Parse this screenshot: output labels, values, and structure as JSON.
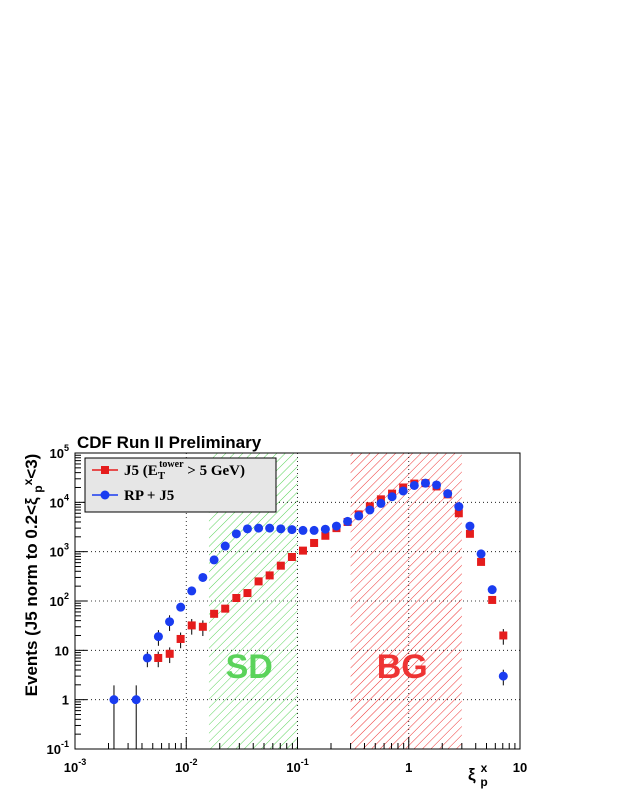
{
  "chart_data": {
    "type": "scatter",
    "title": "CDF Run II Preliminary",
    "ylabel": "Events (J5 norm to 0.2<ξpˣ<3)",
    "xlabel": "ξpˣ",
    "xscale": "log",
    "yscale": "log",
    "xlim": [
      0.001,
      10
    ],
    "ylim": [
      0.1,
      100000
    ],
    "x_ticks": [
      {
        "base": "10",
        "exp": "-3",
        "value": 0.001
      },
      {
        "base": "10",
        "exp": "-2",
        "value": 0.01
      },
      {
        "base": "10",
        "exp": "-1",
        "value": 0.1
      },
      {
        "base": "1",
        "exp": "",
        "value": 1
      },
      {
        "base": "10",
        "exp": "",
        "value": 10
      }
    ],
    "y_ticks": [
      {
        "base": "10",
        "exp": "-1",
        "value": 0.1
      },
      {
        "base": "1",
        "exp": "",
        "value": 1
      },
      {
        "base": "10",
        "exp": "",
        "value": 10
      },
      {
        "base": "10",
        "exp": "2",
        "value": 100
      },
      {
        "base": "10",
        "exp": "3",
        "value": 1000
      },
      {
        "base": "10",
        "exp": "4",
        "value": 10000
      },
      {
        "base": "10",
        "exp": "5",
        "value": 100000
      }
    ],
    "grid": true,
    "regions": [
      {
        "label": "SD",
        "x_range": [
          0.016,
          0.1
        ],
        "color": "#5ad35a"
      },
      {
        "label": "BG",
        "x_range": [
          0.3,
          3.0
        ],
        "color": "#ee3333"
      }
    ],
    "legend_placement": "top-left",
    "series": [
      {
        "name": "J5 (E_T^tower > 5 GeV)",
        "legend": {
          "prefix": "J5 (E",
          "sub": "T",
          "sup": "tower",
          "suffix": " > 5 GeV)"
        },
        "marker": "square",
        "color": "#e51c1c",
        "points": [
          [
            0.0056,
            7
          ],
          [
            0.0071,
            8.5
          ],
          [
            0.0089,
            17
          ],
          [
            0.0112,
            32
          ],
          [
            0.0141,
            30
          ],
          [
            0.0178,
            55
          ],
          [
            0.0224,
            70
          ],
          [
            0.0282,
            115
          ],
          [
            0.0355,
            145
          ],
          [
            0.0447,
            250
          ],
          [
            0.0562,
            330
          ],
          [
            0.0708,
            520
          ],
          [
            0.0891,
            780
          ],
          [
            0.112,
            1050
          ],
          [
            0.141,
            1500
          ],
          [
            0.178,
            2100
          ],
          [
            0.224,
            3000
          ],
          [
            0.282,
            4000
          ],
          [
            0.355,
            5700
          ],
          [
            0.447,
            8300
          ],
          [
            0.562,
            11500
          ],
          [
            0.708,
            15000
          ],
          [
            0.891,
            20000
          ],
          [
            1.122,
            24000
          ],
          [
            1.413,
            24500
          ],
          [
            1.778,
            21000
          ],
          [
            2.239,
            14500
          ],
          [
            2.818,
            6000
          ],
          [
            3.548,
            2300
          ],
          [
            4.467,
            620
          ],
          [
            5.623,
            105
          ],
          [
            7.079,
            20
          ]
        ]
      },
      {
        "name": "RP + J5",
        "legend": {
          "prefix": "RP + J5",
          "sub": "",
          "sup": "",
          "suffix": ""
        },
        "marker": "circle",
        "color": "#1a3cf0",
        "points": [
          [
            0.00224,
            1
          ],
          [
            0.00355,
            1
          ],
          [
            0.00447,
            7
          ],
          [
            0.00562,
            19
          ],
          [
            0.00708,
            38
          ],
          [
            0.00891,
            75
          ],
          [
            0.0112,
            160
          ],
          [
            0.0141,
            300
          ],
          [
            0.0178,
            680
          ],
          [
            0.0224,
            1300
          ],
          [
            0.0282,
            2300
          ],
          [
            0.0355,
            2900
          ],
          [
            0.0447,
            3000
          ],
          [
            0.0562,
            3000
          ],
          [
            0.0708,
            2900
          ],
          [
            0.0891,
            2800
          ],
          [
            0.112,
            2700
          ],
          [
            0.141,
            2700
          ],
          [
            0.178,
            2850
          ],
          [
            0.224,
            3300
          ],
          [
            0.282,
            4100
          ],
          [
            0.355,
            5300
          ],
          [
            0.447,
            7000
          ],
          [
            0.562,
            9500
          ],
          [
            0.708,
            13000
          ],
          [
            0.891,
            17000
          ],
          [
            1.122,
            22000
          ],
          [
            1.413,
            24500
          ],
          [
            1.778,
            22500
          ],
          [
            2.239,
            15000
          ],
          [
            2.818,
            8200
          ],
          [
            3.548,
            3300
          ],
          [
            4.467,
            900
          ],
          [
            5.623,
            170
          ],
          [
            7.079,
            3
          ]
        ]
      }
    ]
  }
}
